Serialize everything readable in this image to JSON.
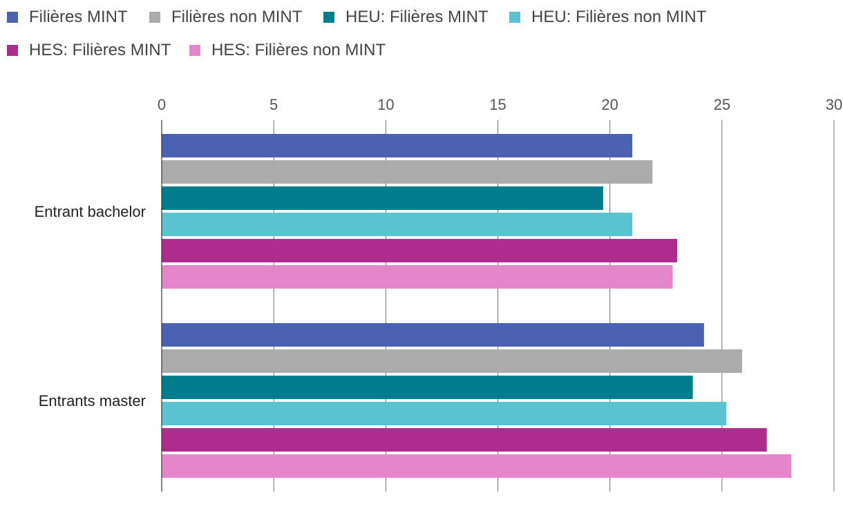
{
  "chart_data": {
    "type": "bar",
    "orientation": "horizontal",
    "categories": [
      "Entrant bachelor",
      "Entrants master"
    ],
    "series": [
      {
        "name": "Filières MINT",
        "color": "#4b61b2",
        "values": [
          21.0,
          24.2
        ]
      },
      {
        "name": "Filières non MINT",
        "color": "#ababab",
        "values": [
          21.9,
          25.9
        ]
      },
      {
        "name": "HEU: Filières MINT",
        "color": "#007d8c",
        "values": [
          19.7,
          23.7
        ]
      },
      {
        "name": "HEU: Filières non MINT",
        "color": "#5ac3d0",
        "values": [
          21.0,
          25.2
        ]
      },
      {
        "name": "HES: Filières MINT",
        "color": "#ae2c8e",
        "values": [
          23.0,
          27.0
        ]
      },
      {
        "name": "HES: Filières non MINT",
        "color": "#e585cb",
        "values": [
          22.8,
          28.1
        ]
      }
    ],
    "x_ticks": [
      "0",
      "5",
      "10",
      "15",
      "20",
      "25",
      "30"
    ],
    "xlim": [
      0,
      30
    ],
    "grid": true,
    "legend_position": "top-left",
    "title": "",
    "xlabel": "",
    "ylabel": ""
  }
}
